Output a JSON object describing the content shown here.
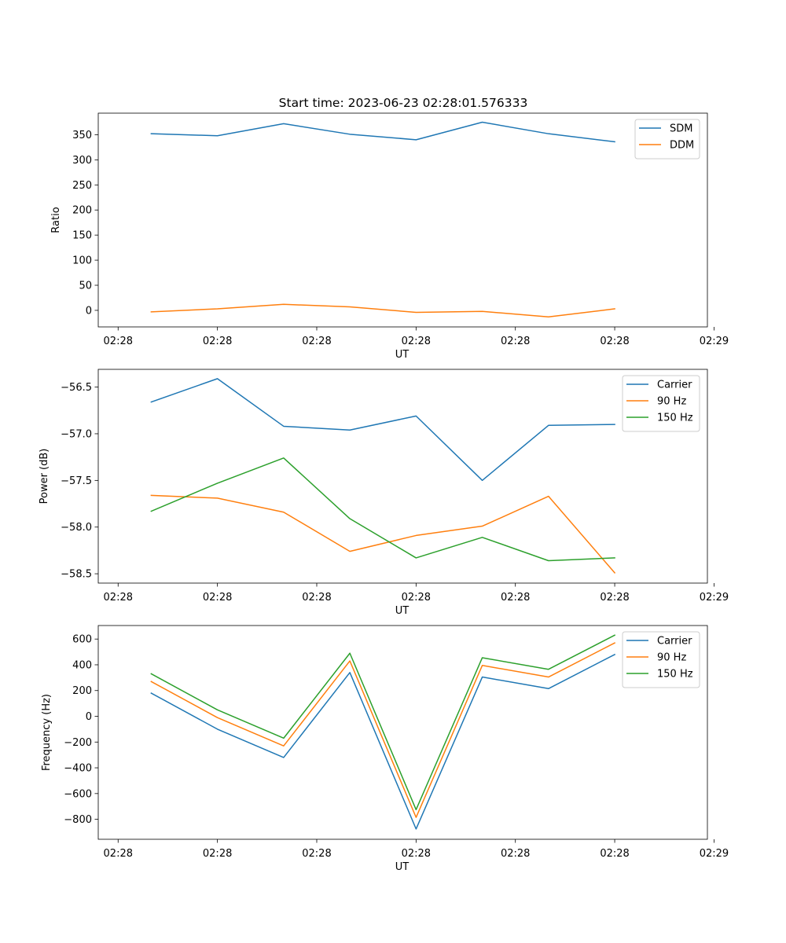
{
  "figure": {
    "title": "Start time: 2023-06-23 02:28:01.576333"
  },
  "chart_data": [
    {
      "type": "line",
      "title": "Start time: 2023-06-23 02:28:01.576333",
      "xlabel": "UT",
      "ylabel": "Ratio",
      "x": [
        1,
        2,
        3,
        4,
        5,
        6,
        7,
        8
      ],
      "xlim": [
        0.2,
        9.4
      ],
      "xticks": [
        0.5,
        2,
        3.5,
        5,
        6.5,
        8,
        9.5
      ],
      "xtick_labels": [
        "02:28",
        "02:28",
        "02:28",
        "02:28",
        "02:28",
        "02:28",
        "02:29"
      ],
      "ylim": [
        -33,
        393
      ],
      "yticks": [
        0,
        50,
        100,
        150,
        200,
        250,
        300,
        350
      ],
      "ytick_labels": [
        "0",
        "50",
        "100",
        "150",
        "200",
        "250",
        "300",
        "350"
      ],
      "legend": "top-right",
      "grid": false,
      "series": [
        {
          "name": "SDM",
          "color": "#1f77b4",
          "values": [
            352,
            348,
            372,
            351,
            340,
            375,
            352,
            336
          ]
        },
        {
          "name": "DDM",
          "color": "#ff7f0e",
          "values": [
            -3,
            3,
            12,
            7,
            -4,
            -2,
            -13,
            3
          ]
        }
      ]
    },
    {
      "type": "line",
      "title": "",
      "xlabel": "UT",
      "ylabel": "Power (dB)",
      "x": [
        1,
        2,
        3,
        4,
        5,
        6,
        7,
        8
      ],
      "xlim": [
        0.2,
        9.4
      ],
      "xticks": [
        0.5,
        2,
        3.5,
        5,
        6.5,
        8,
        9.5
      ],
      "xtick_labels": [
        "02:28",
        "02:28",
        "02:28",
        "02:28",
        "02:28",
        "02:28",
        "02:29"
      ],
      "ylim": [
        -58.6,
        -56.31
      ],
      "yticks": [
        -56.5,
        -57.0,
        -57.5,
        -58.0,
        -58.5
      ],
      "ytick_labels": [
        "−56.5",
        "−57.0",
        "−57.5",
        "−58.0",
        "−58.5"
      ],
      "legend": "top-right",
      "grid": false,
      "series": [
        {
          "name": "Carrier",
          "color": "#1f77b4",
          "values": [
            -56.66,
            -56.41,
            -56.92,
            -56.96,
            -56.81,
            -57.5,
            -56.91,
            -56.9
          ]
        },
        {
          "name": "90 Hz",
          "color": "#ff7f0e",
          "values": [
            -57.66,
            -57.69,
            -57.84,
            -58.26,
            -58.09,
            -57.99,
            -57.67,
            -58.49
          ]
        },
        {
          "name": "150 Hz",
          "color": "#2ca02c",
          "values": [
            -57.83,
            -57.53,
            -57.26,
            -57.91,
            -58.33,
            -58.11,
            -58.36,
            -58.33
          ]
        }
      ]
    },
    {
      "type": "line",
      "title": "",
      "xlabel": "UT",
      "ylabel": "Frequency (Hz)",
      "x": [
        1,
        2,
        3,
        4,
        5,
        6,
        7,
        8
      ],
      "xlim": [
        0.2,
        9.4
      ],
      "xticks": [
        0.5,
        2,
        3.5,
        5,
        6.5,
        8,
        9.5
      ],
      "xtick_labels": [
        "02:28",
        "02:28",
        "02:28",
        "02:28",
        "02:28",
        "02:28",
        "02:29"
      ],
      "ylim": [
        -955,
        705
      ],
      "yticks": [
        600,
        400,
        200,
        0,
        -200,
        -400,
        -600,
        -800
      ],
      "ytick_labels": [
        "600",
        "400",
        "200",
        "0",
        "−200",
        "−400",
        "−600",
        "−800"
      ],
      "legend": "top-right",
      "grid": false,
      "series": [
        {
          "name": "Carrier",
          "color": "#1f77b4",
          "values": [
            180,
            -100,
            -320,
            340,
            -875,
            305,
            215,
            480
          ]
        },
        {
          "name": "90 Hz",
          "color": "#ff7f0e",
          "values": [
            270,
            -10,
            -230,
            430,
            -785,
            395,
            305,
            570
          ]
        },
        {
          "name": "150 Hz",
          "color": "#2ca02c",
          "values": [
            330,
            50,
            -170,
            490,
            -725,
            455,
            365,
            630
          ]
        }
      ]
    }
  ]
}
